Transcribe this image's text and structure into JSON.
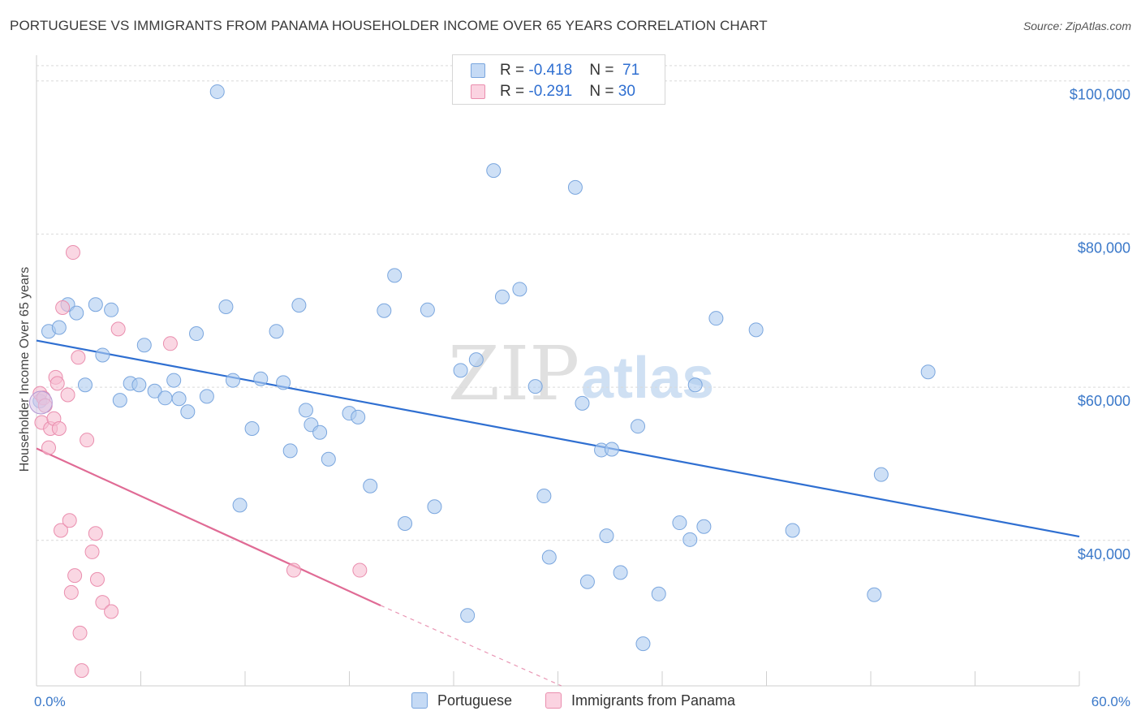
{
  "title": "PORTUGUESE VS IMMIGRANTS FROM PANAMA HOUSEHOLDER INCOME OVER 65 YEARS CORRELATION CHART",
  "source": "Source: ZipAtlas.com",
  "watermark": {
    "zip": "ZIP",
    "atlas": "atlas"
  },
  "legend": {
    "rows": [
      {
        "r_label": "R = ",
        "r_value": "-0.418",
        "n_label": "N = ",
        "n_value": "71",
        "color": "#aecbf0"
      },
      {
        "r_label": "R = ",
        "r_value": "-0.291",
        "n_label": "N = ",
        "n_value": "30",
        "color": "#f7bcd0"
      }
    ]
  },
  "bottom_legend": [
    "Portuguese",
    "Immigrants from Panama"
  ],
  "chart_data": {
    "type": "scatter",
    "title": "PORTUGUESE VS IMMIGRANTS FROM PANAMA HOUSEHOLDER INCOME OVER 65 YEARS CORRELATION CHART",
    "xlabel": "",
    "ylabel": "Householder Income Over 65 years",
    "xlim": [
      0,
      60
    ],
    "ylim": [
      21000,
      104000
    ],
    "x_tick_labels": [
      "0.0%",
      "60.0%"
    ],
    "y_ticks": [
      40000,
      60000,
      80000,
      100000
    ],
    "y_tick_labels": [
      "$40,000",
      "$60,000",
      "$80,000",
      "$100,000"
    ],
    "grid": true,
    "legend_position": "top-center",
    "series": [
      {
        "name": "Portuguese",
        "color": "#aecbf0",
        "stroke": "#7aa6de",
        "trend": {
          "x": [
            0,
            60
          ],
          "y": [
            66100,
            40500
          ],
          "color": "#2f6fd1"
        },
        "points": [
          [
            0.7,
            67300
          ],
          [
            1.3,
            67800
          ],
          [
            1.8,
            70800
          ],
          [
            2.3,
            69700
          ],
          [
            2.8,
            60300
          ],
          [
            3.4,
            70800
          ],
          [
            3.8,
            64200
          ],
          [
            4.3,
            70100
          ],
          [
            4.8,
            58300
          ],
          [
            5.4,
            60500
          ],
          [
            5.9,
            60300
          ],
          [
            6.2,
            65500
          ],
          [
            6.8,
            59500
          ],
          [
            7.4,
            58600
          ],
          [
            7.9,
            60900
          ],
          [
            8.2,
            58500
          ],
          [
            8.7,
            56800
          ],
          [
            9.2,
            67000
          ],
          [
            9.8,
            58800
          ],
          [
            10.4,
            98600
          ],
          [
            10.9,
            70500
          ],
          [
            11.3,
            60900
          ],
          [
            11.7,
            44600
          ],
          [
            12.4,
            54600
          ],
          [
            12.9,
            61100
          ],
          [
            13.8,
            67300
          ],
          [
            14.2,
            60600
          ],
          [
            14.6,
            51700
          ],
          [
            15.1,
            70700
          ],
          [
            15.5,
            57000
          ],
          [
            15.8,
            55100
          ],
          [
            16.3,
            54100
          ],
          [
            16.8,
            50600
          ],
          [
            18.0,
            56600
          ],
          [
            18.5,
            56100
          ],
          [
            19.2,
            47100
          ],
          [
            20.0,
            70000
          ],
          [
            20.6,
            74600
          ],
          [
            21.2,
            42200
          ],
          [
            22.5,
            70100
          ],
          [
            22.9,
            44400
          ],
          [
            24.4,
            62200
          ],
          [
            24.8,
            30200
          ],
          [
            25.3,
            63600
          ],
          [
            26.3,
            88300
          ],
          [
            26.8,
            71800
          ],
          [
            27.8,
            72800
          ],
          [
            28.7,
            60100
          ],
          [
            29.2,
            45800
          ],
          [
            29.5,
            37800
          ],
          [
            31.0,
            86100
          ],
          [
            31.4,
            57900
          ],
          [
            31.7,
            34600
          ],
          [
            32.5,
            51800
          ],
          [
            32.8,
            40600
          ],
          [
            33.1,
            51900
          ],
          [
            33.6,
            35800
          ],
          [
            34.6,
            54900
          ],
          [
            34.9,
            26500
          ],
          [
            35.8,
            33000
          ],
          [
            37.0,
            42300
          ],
          [
            37.6,
            40100
          ],
          [
            37.9,
            60300
          ],
          [
            38.4,
            41800
          ],
          [
            39.1,
            69000
          ],
          [
            41.4,
            67500
          ],
          [
            43.5,
            41300
          ],
          [
            48.2,
            32900
          ],
          [
            48.6,
            48600
          ],
          [
            51.3,
            62000
          ],
          [
            0.2,
            58200
          ]
        ]
      },
      {
        "name": "Immigrants from Panama",
        "color": "#f7bcd0",
        "stroke": "#ea8eae",
        "trend": {
          "x": [
            0,
            19.8
          ],
          "y": [
            52000,
            31500
          ],
          "color": "#e06b95"
        },
        "trend_dashed": {
          "x": [
            19.8,
            30.2
          ],
          "y": [
            31500,
            21000
          ]
        },
        "points": [
          [
            0.2,
            59200
          ],
          [
            0.3,
            55400
          ],
          [
            0.4,
            58600
          ],
          [
            0.5,
            57600
          ],
          [
            0.7,
            52100
          ],
          [
            0.8,
            54600
          ],
          [
            1.0,
            55900
          ],
          [
            1.1,
            61300
          ],
          [
            1.2,
            60500
          ],
          [
            1.3,
            54600
          ],
          [
            1.4,
            41300
          ],
          [
            1.5,
            70400
          ],
          [
            1.8,
            59000
          ],
          [
            1.9,
            42600
          ],
          [
            2.0,
            33200
          ],
          [
            2.1,
            77600
          ],
          [
            2.2,
            35400
          ],
          [
            2.4,
            63900
          ],
          [
            2.5,
            27900
          ],
          [
            2.6,
            23000
          ],
          [
            2.9,
            53100
          ],
          [
            3.2,
            38500
          ],
          [
            3.4,
            40900
          ],
          [
            3.5,
            34900
          ],
          [
            3.8,
            31900
          ],
          [
            4.3,
            30700
          ],
          [
            4.7,
            67600
          ],
          [
            7.7,
            65700
          ],
          [
            14.8,
            36100
          ],
          [
            18.6,
            36100
          ]
        ]
      }
    ]
  }
}
